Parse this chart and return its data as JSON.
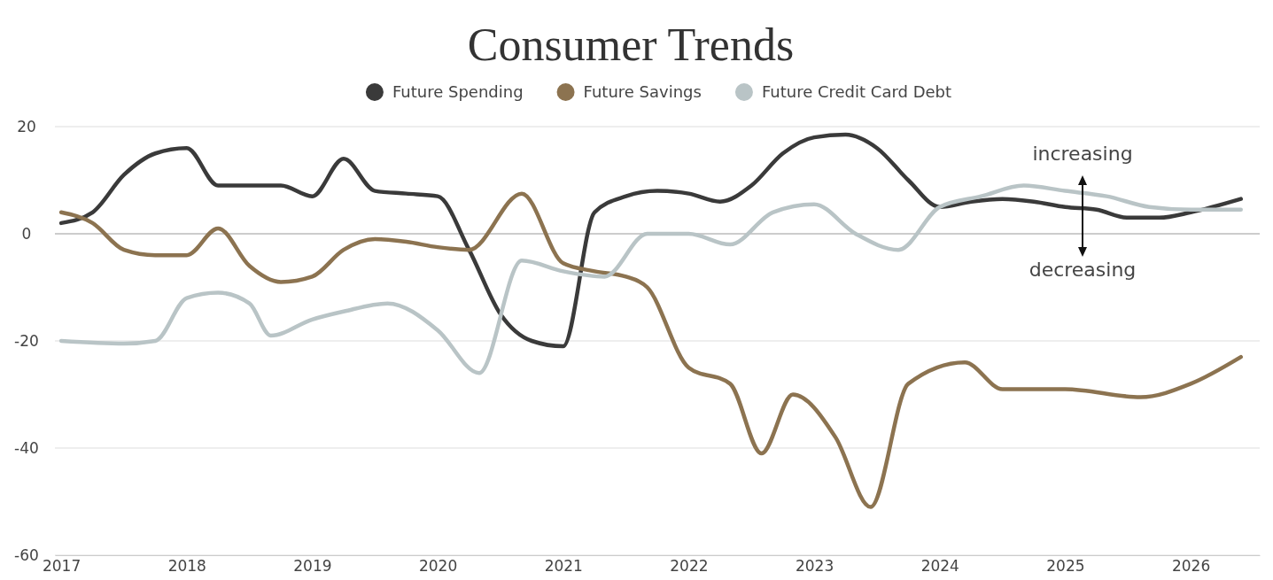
{
  "chart_data": {
    "type": "line",
    "title": "Consumer Trends",
    "legend": "top",
    "grid": "y",
    "marker": "none",
    "line_style": "solid",
    "xlim": [
      2016.95,
      2026.55
    ],
    "ylim": [
      -60,
      20
    ],
    "xticks": [
      2017,
      2018,
      2019,
      2020,
      2021,
      2022,
      2023,
      2024,
      2025,
      2026
    ],
    "yticks": [
      -60,
      -40,
      -20,
      0,
      20
    ],
    "annotations": [
      "increasing",
      "decreasing"
    ],
    "series": [
      {
        "name": "Future Spending",
        "color": "#3a3a3a",
        "x": [
          2017,
          2017.25,
          2017.5,
          2017.75,
          2018,
          2018.25,
          2018.5,
          2018.75,
          2019,
          2019.25,
          2019.5,
          2019.75,
          2020,
          2020.25,
          2020.5,
          2020.75,
          2021,
          2021.25,
          2021.5,
          2021.75,
          2022,
          2022.25,
          2022.5,
          2022.75,
          2023,
          2023.25,
          2023.5,
          2023.75,
          2024,
          2024.25,
          2024.5,
          2024.75,
          2025,
          2025.25,
          2025.5,
          2025.75,
          2026,
          2026.4
        ],
        "values": [
          2,
          4,
          11,
          15,
          16,
          9,
          9,
          9,
          7,
          14,
          8,
          7.5,
          7,
          -3,
          -15,
          -20,
          -21,
          4,
          7,
          8,
          7.5,
          6,
          9,
          15,
          18,
          18.5,
          16,
          10,
          5,
          6,
          6.5,
          6,
          5,
          4.5,
          3,
          3,
          4,
          6.5
        ]
      },
      {
        "name": "Future Savings",
        "color": "#8c7350",
        "x": [
          2017,
          2017.25,
          2017.5,
          2017.75,
          2018,
          2018.25,
          2018.5,
          2018.75,
          2019,
          2019.25,
          2019.5,
          2019.75,
          2020,
          2020.25,
          2020.67,
          2021,
          2021.25,
          2021.5,
          2021.67,
          2022,
          2022.33,
          2022.58,
          2022.83,
          2023.17,
          2023.45,
          2023.75,
          2024.2,
          2024.5,
          2025,
          2025.6,
          2026,
          2026.4
        ],
        "values": [
          4,
          2,
          -3,
          -4,
          -4,
          1,
          -6,
          -9,
          -8,
          -3,
          -1,
          -1.5,
          -2.5,
          -3,
          7.5,
          -5.5,
          -7,
          -8,
          -10,
          -25,
          -28,
          -41,
          -30,
          -38,
          -51,
          -28,
          -24,
          -29,
          -29,
          -30.5,
          -28,
          -23
        ]
      },
      {
        "name": "Future Credit Card Debt",
        "color": "#b9c4c6",
        "x": [
          2017,
          2017.5,
          2017.75,
          2018,
          2018.25,
          2018.5,
          2018.67,
          2019,
          2019.25,
          2019.6,
          2020,
          2020.33,
          2020.67,
          2021,
          2021.33,
          2021.67,
          2022,
          2022.33,
          2022.67,
          2023,
          2023.33,
          2023.67,
          2024,
          2024.33,
          2024.67,
          2025,
          2025.33,
          2025.67,
          2026,
          2026.4
        ],
        "values": [
          -20,
          -20.5,
          -20,
          -12,
          -11,
          -13,
          -19,
          -16,
          -14.5,
          -13,
          -18,
          -26,
          -5,
          -7,
          -8,
          0,
          0,
          -2,
          4,
          5.5,
          0,
          -3,
          5,
          7,
          9,
          8,
          7,
          5,
          4.5,
          4.5
        ]
      }
    ]
  }
}
